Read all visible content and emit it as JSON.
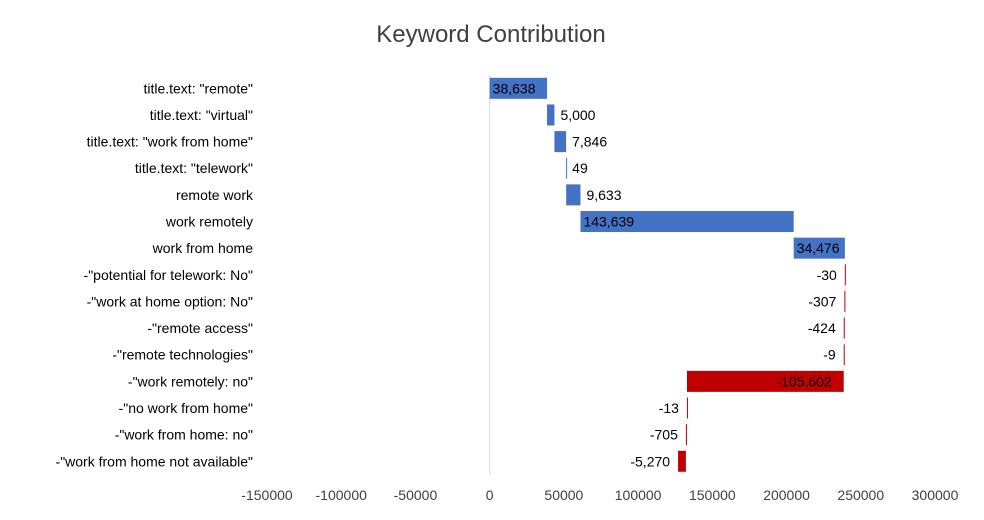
{
  "chart_data": {
    "type": "bar",
    "subtype": "waterfall-horizontal",
    "title": "Keyword Contribution",
    "xlabel": "",
    "ylabel": "",
    "xlim": [
      -150000,
      300000
    ],
    "x_ticks": [
      -150000,
      -100000,
      -50000,
      0,
      50000,
      100000,
      150000,
      200000,
      250000,
      300000
    ],
    "x_tick_labels": [
      "-150000",
      "-100000",
      "-50000",
      "0",
      "50000",
      "100000",
      "150000",
      "200000",
      "250000",
      "300000"
    ],
    "grid": false,
    "legend": "none",
    "positive_color": "#4472C4",
    "negative_color": "#C00000",
    "categories": [
      "title.text: \"remote\"",
      "title.text: \"virtual\"",
      "title.text: \"work from home\"",
      "title.text: \"telework\"",
      "remote work",
      "work remotely",
      "work from home",
      "-\"potential for telework: No\"",
      "-\"work at home option: No\"",
      "-\"remote access\"",
      "-\"remote technologies\"",
      "-\"work remotely: no\"",
      "-\"no work from home\"",
      "-\"work from home: no\"",
      "-\"work from home not available\""
    ],
    "values": [
      38638,
      5000,
      7846,
      49,
      9633,
      143639,
      34476,
      -30,
      -307,
      -424,
      -9,
      -105602,
      -13,
      -705,
      -5270
    ],
    "data_labels": [
      "38,638",
      "5,000",
      "7,846",
      "49",
      "9,633",
      "143,639",
      "34,476",
      "-30",
      "-307",
      "-424",
      "-9",
      "-105,602",
      "-13",
      "-705",
      "-5,270"
    ]
  }
}
